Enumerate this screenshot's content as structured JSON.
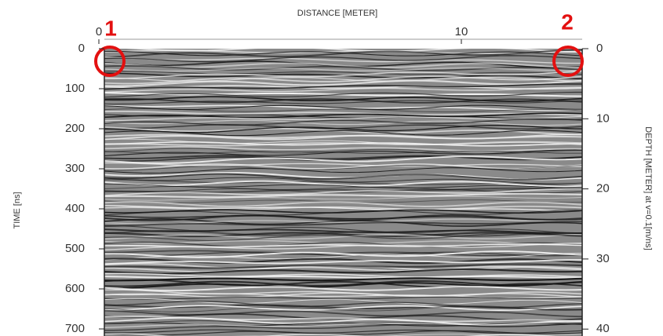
{
  "x_axis": {
    "label": "DISTANCE [METER]",
    "ticks": [
      0,
      10
    ]
  },
  "y_axis": {
    "label": "TIME [ns]",
    "ticks": [
      0,
      100,
      200,
      300,
      400,
      500,
      600,
      700
    ]
  },
  "y2_axis": {
    "label": "DEPTH [METER] at v=0.1[m/ns]",
    "ticks": [
      0,
      10,
      20,
      30,
      40
    ]
  },
  "markers": [
    "1",
    "2"
  ]
}
